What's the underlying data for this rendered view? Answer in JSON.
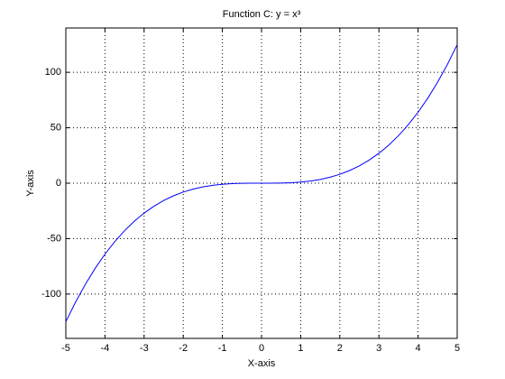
{
  "chart_data": {
    "type": "line",
    "title": "Function C: y = x³",
    "x_label": "X-axis",
    "y_label": "Y-axis",
    "x": [
      -5,
      -4.75,
      -4.5,
      -4.25,
      -4,
      -3.75,
      -3.5,
      -3.25,
      -3,
      -2.75,
      -2.5,
      -2.25,
      -2,
      -1.75,
      -1.5,
      -1.25,
      -1,
      -0.75,
      -0.5,
      -0.25,
      0,
      0.25,
      0.5,
      0.75,
      1,
      1.25,
      1.5,
      1.75,
      2,
      2.25,
      2.5,
      2.75,
      3,
      3.25,
      3.5,
      3.75,
      4,
      4.25,
      4.5,
      4.75,
      5
    ],
    "series": [
      {
        "color": "#0000ff",
        "values": [
          -125,
          -107.171875,
          -91.125,
          -76.765625,
          -64,
          -52.734375,
          -42.875,
          -34.328125,
          -27,
          -20.796875,
          -15.625,
          -11.390625,
          -8,
          -5.359375,
          -3.375,
          -1.953125,
          -1,
          -0.421875,
          -0.125,
          -0.015625,
          0,
          0.015625,
          0.125,
          0.421875,
          1,
          1.953125,
          3.375,
          5.359375,
          8,
          11.390625,
          15.625,
          20.796875,
          27,
          34.328125,
          42.875,
          52.734375,
          64,
          76.765625,
          91.125,
          107.171875,
          125
        ]
      }
    ],
    "xlim": [
      -5,
      5
    ],
    "ylim": [
      -140,
      140
    ],
    "xticks": [
      -5,
      -4,
      -3,
      -2,
      -1,
      0,
      1,
      2,
      3,
      4,
      5
    ],
    "yticks": [
      -100,
      -50,
      0,
      50,
      100
    ],
    "grid": true
  }
}
